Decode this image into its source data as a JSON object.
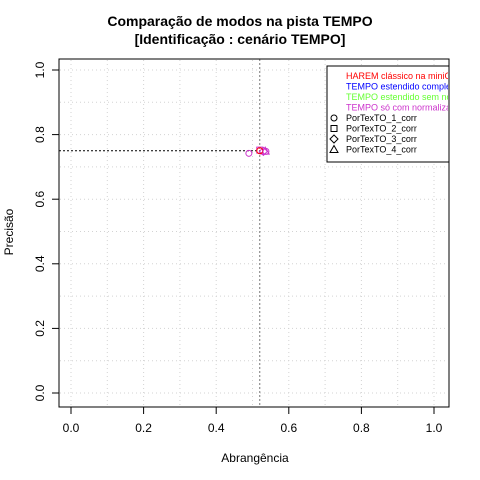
{
  "chart_data": {
    "type": "scatter",
    "title": "Comparação de modos na pista TEMPO",
    "subtitle": "[Identificação : cenário TEMPO]",
    "xlabel": "Abrangência",
    "ylabel": "Precisão",
    "xlim": [
      0,
      1
    ],
    "ylim": [
      0,
      1
    ],
    "xticks": [
      "0.0",
      "0.2",
      "0.4",
      "0.6",
      "0.8",
      "1.0"
    ],
    "yticks": [
      "0.0",
      "0.2",
      "0.4",
      "0.6",
      "0.8",
      "1.0"
    ],
    "grid": true,
    "reference_lines": {
      "x": 0.52,
      "y": 0.75
    },
    "legend_position": "top-right",
    "modes": [
      {
        "label": "HAREM clássico na miniC",
        "color": "#ff0000"
      },
      {
        "label": "TEMPO estendido comple",
        "color": "#0000ff"
      },
      {
        "label": "TEMPO estendido sem no",
        "color": "#66ff33"
      },
      {
        "label": "TEMPO só com normaliza",
        "color": "#cc33cc"
      }
    ],
    "runs": [
      {
        "label": "PorTexTO_1_corr",
        "marker": "circle"
      },
      {
        "label": "PorTexTO_2_corr",
        "marker": "square"
      },
      {
        "label": "PorTexTO_3_corr",
        "marker": "diamond"
      },
      {
        "label": "PorTexTO_4_corr",
        "marker": "triangle"
      }
    ],
    "series": [
      {
        "mode": 3,
        "run": 0,
        "x": 0.49,
        "y": 0.742
      },
      {
        "mode": 3,
        "run": 1,
        "x": 0.52,
        "y": 0.752
      },
      {
        "mode": 3,
        "run": 2,
        "x": 0.53,
        "y": 0.748
      },
      {
        "mode": 3,
        "run": 3,
        "x": 0.535,
        "y": 0.749
      },
      {
        "mode": 0,
        "run": 0,
        "x": 0.52,
        "y": 0.75
      },
      {
        "mode": 3,
        "run": 0,
        "x": 0.537,
        "y": 0.748
      }
    ]
  }
}
